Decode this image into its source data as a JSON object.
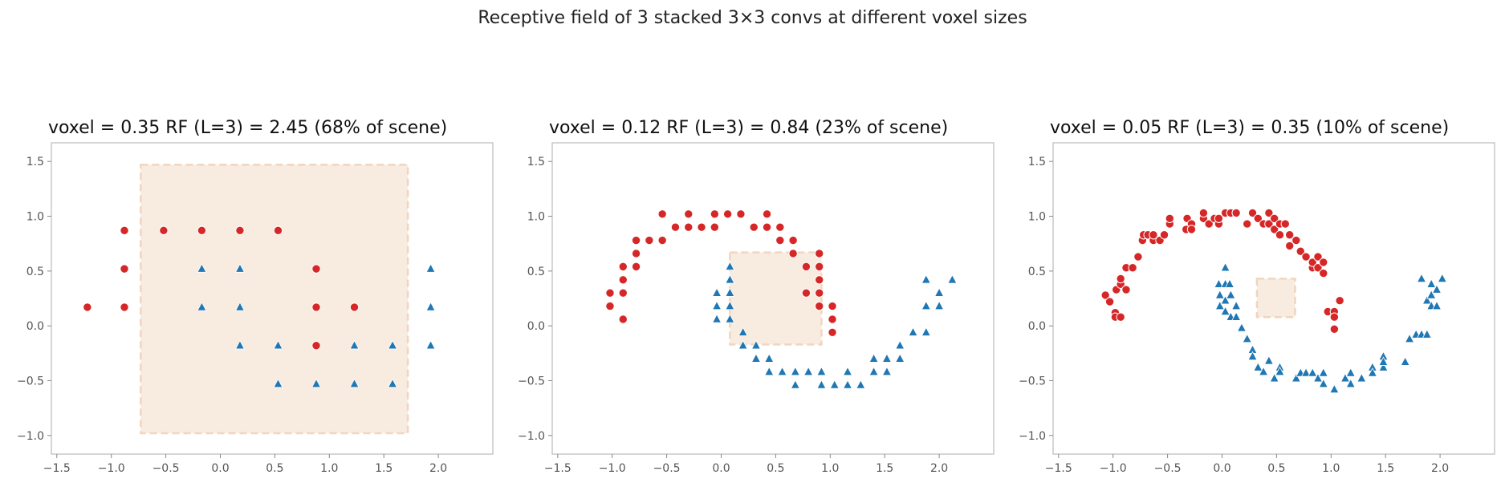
{
  "figure": {
    "suptitle": "Receptive field of 3 stacked 3×3 convs at different voxel sizes"
  },
  "colors": {
    "class_a": "#d62728",
    "class_b": "#1f77b4",
    "rf_fill": "#f8ebe0",
    "rf_edge": "#f1d5bf",
    "frame": "#bbbbbb"
  },
  "chart_data": [
    {
      "type": "scatter",
      "title": "voxel = 0.35    RF (L=3) = 2.45  (68% of scene)",
      "xlim": [
        -1.55,
        2.5
      ],
      "ylim": [
        -1.17,
        1.67
      ],
      "xticks": [
        -1.5,
        -1.0,
        -0.5,
        0.0,
        0.5,
        1.0,
        1.5,
        2.0
      ],
      "yticks": [
        -1.0,
        -0.5,
        0.0,
        0.5,
        1.0,
        1.5
      ],
      "xtick_labels": [
        "−1.5",
        "−1.0",
        "−0.5",
        "0.0",
        "0.5",
        "1.0",
        "1.5",
        "2.0"
      ],
      "ytick_labels": [
        "−1.0",
        "−0.5",
        "0.0",
        "0.5",
        "1.0",
        "1.5"
      ],
      "rf_box": [
        -0.73,
        -0.98,
        1.72,
        1.47
      ],
      "series": [
        {
          "marker": "circle",
          "color": "#d62728",
          "points": [
            [
              -1.22,
              0.17
            ],
            [
              -0.88,
              0.17
            ],
            [
              -0.88,
              0.52
            ],
            [
              -0.88,
              0.87
            ],
            [
              -0.52,
              0.87
            ],
            [
              -0.17,
              0.87
            ],
            [
              0.18,
              0.87
            ],
            [
              0.53,
              0.87
            ],
            [
              0.88,
              0.52
            ],
            [
              0.88,
              0.17
            ],
            [
              0.88,
              -0.18
            ],
            [
              1.23,
              0.17
            ]
          ]
        },
        {
          "marker": "triangle",
          "color": "#1f77b4",
          "points": [
            [
              -0.17,
              0.52
            ],
            [
              -0.17,
              0.17
            ],
            [
              0.18,
              0.52
            ],
            [
              0.18,
              0.17
            ],
            [
              0.18,
              -0.18
            ],
            [
              0.53,
              -0.18
            ],
            [
              0.53,
              -0.53
            ],
            [
              0.88,
              -0.53
            ],
            [
              1.23,
              -0.18
            ],
            [
              1.23,
              -0.53
            ],
            [
              1.58,
              -0.18
            ],
            [
              1.58,
              -0.53
            ],
            [
              1.93,
              0.52
            ],
            [
              1.93,
              0.17
            ],
            [
              1.93,
              -0.18
            ]
          ]
        }
      ]
    },
    {
      "type": "scatter",
      "title": "voxel = 0.12    RF (L=3) = 0.84  (23% of scene)",
      "xlim": [
        -1.55,
        2.5
      ],
      "ylim": [
        -1.17,
        1.67
      ],
      "xticks": [
        -1.5,
        -1.0,
        -0.5,
        0.0,
        0.5,
        1.0,
        1.5,
        2.0
      ],
      "yticks": [
        -1.0,
        -0.5,
        0.0,
        0.5,
        1.0,
        1.5
      ],
      "xtick_labels": [
        "−1.5",
        "−1.0",
        "−0.5",
        "0.0",
        "0.5",
        "1.0",
        "1.5",
        "2.0"
      ],
      "ytick_labels": [
        "−1.0",
        "−0.5",
        "0.0",
        "0.5",
        "1.0",
        "1.5"
      ],
      "rf_box": [
        0.08,
        -0.17,
        0.92,
        0.67
      ],
      "series": [
        {
          "marker": "circle",
          "color": "#d62728",
          "points": [
            [
              -1.02,
              0.3
            ],
            [
              -1.02,
              0.18
            ],
            [
              -0.9,
              0.06
            ],
            [
              -0.9,
              0.3
            ],
            [
              -0.9,
              0.42
            ],
            [
              -0.9,
              0.54
            ],
            [
              -0.78,
              0.54
            ],
            [
              -0.78,
              0.66
            ],
            [
              -0.78,
              0.78
            ],
            [
              -0.66,
              0.78
            ],
            [
              -0.54,
              0.78
            ],
            [
              -0.54,
              1.02
            ],
            [
              -0.42,
              0.9
            ],
            [
              -0.3,
              0.9
            ],
            [
              -0.3,
              1.02
            ],
            [
              -0.18,
              0.9
            ],
            [
              -0.06,
              0.9
            ],
            [
              -0.06,
              1.02
            ],
            [
              0.06,
              1.02
            ],
            [
              0.18,
              1.02
            ],
            [
              0.3,
              0.9
            ],
            [
              0.42,
              0.9
            ],
            [
              0.42,
              1.02
            ],
            [
              0.54,
              0.9
            ],
            [
              0.54,
              0.78
            ],
            [
              0.66,
              0.78
            ],
            [
              0.66,
              0.66
            ],
            [
              0.78,
              0.54
            ],
            [
              0.78,
              0.3
            ],
            [
              0.9,
              0.66
            ],
            [
              0.9,
              0.54
            ],
            [
              0.9,
              0.42
            ],
            [
              0.9,
              0.3
            ],
            [
              0.9,
              0.18
            ],
            [
              1.02,
              0.18
            ],
            [
              1.02,
              0.06
            ],
            [
              1.02,
              -0.06
            ]
          ]
        },
        {
          "marker": "triangle",
          "color": "#1f77b4",
          "points": [
            [
              -0.04,
              0.3
            ],
            [
              -0.04,
              0.18
            ],
            [
              -0.04,
              0.06
            ],
            [
              0.08,
              0.54
            ],
            [
              0.08,
              0.42
            ],
            [
              0.08,
              0.3
            ],
            [
              0.08,
              0.18
            ],
            [
              0.08,
              0.06
            ],
            [
              0.2,
              -0.06
            ],
            [
              0.2,
              -0.18
            ],
            [
              0.32,
              -0.18
            ],
            [
              0.32,
              -0.3
            ],
            [
              0.44,
              -0.3
            ],
            [
              0.44,
              -0.42
            ],
            [
              0.56,
              -0.42
            ],
            [
              0.68,
              -0.42
            ],
            [
              0.68,
              -0.54
            ],
            [
              0.8,
              -0.42
            ],
            [
              0.92,
              -0.42
            ],
            [
              0.92,
              -0.54
            ],
            [
              1.04,
              -0.54
            ],
            [
              1.16,
              -0.54
            ],
            [
              1.16,
              -0.42
            ],
            [
              1.28,
              -0.54
            ],
            [
              1.4,
              -0.3
            ],
            [
              1.4,
              -0.42
            ],
            [
              1.52,
              -0.3
            ],
            [
              1.52,
              -0.42
            ],
            [
              1.64,
              -0.18
            ],
            [
              1.64,
              -0.3
            ],
            [
              1.76,
              -0.06
            ],
            [
              1.88,
              -0.06
            ],
            [
              1.88,
              0.18
            ],
            [
              1.88,
              0.42
            ],
            [
              2.0,
              0.18
            ],
            [
              2.0,
              0.3
            ],
            [
              2.12,
              0.42
            ]
          ]
        }
      ]
    },
    {
      "type": "scatter",
      "title": "voxel = 0.05    RF (L=3) = 0.35  (10% of scene)",
      "xlim": [
        -1.55,
        2.5
      ],
      "ylim": [
        -1.17,
        1.67
      ],
      "xticks": [
        -1.5,
        -1.0,
        -0.5,
        0.0,
        0.5,
        1.0,
        1.5,
        2.0
      ],
      "yticks": [
        -1.0,
        -0.5,
        0.0,
        0.5,
        1.0,
        1.5
      ],
      "xtick_labels": [
        "−1.5",
        "−1.0",
        "−0.5",
        "0.0",
        "0.5",
        "1.0",
        "1.5",
        "2.0"
      ],
      "ytick_labels": [
        "−1.0",
        "−0.5",
        "0.0",
        "0.5",
        "1.0",
        "1.5"
      ],
      "rf_box": [
        0.32,
        0.08,
        0.67,
        0.43
      ],
      "series": [
        {
          "marker": "circle",
          "color": "#d62728",
          "points": [
            [
              -1.07,
              0.28
            ],
            [
              -1.03,
              0.22
            ],
            [
              -0.98,
              0.12
            ],
            [
              -0.98,
              0.08
            ],
            [
              -0.97,
              0.33
            ],
            [
              -0.93,
              0.08
            ],
            [
              -0.93,
              0.38
            ],
            [
              -0.93,
              0.43
            ],
            [
              -0.88,
              0.33
            ],
            [
              -0.88,
              0.53
            ],
            [
              -0.82,
              0.53
            ],
            [
              -0.77,
              0.63
            ],
            [
              -0.73,
              0.78
            ],
            [
              -0.72,
              0.83
            ],
            [
              -0.68,
              0.83
            ],
            [
              -0.63,
              0.78
            ],
            [
              -0.63,
              0.83
            ],
            [
              -0.57,
              0.78
            ],
            [
              -0.53,
              0.83
            ],
            [
              -0.48,
              0.93
            ],
            [
              -0.48,
              0.98
            ],
            [
              -0.33,
              0.88
            ],
            [
              -0.32,
              0.98
            ],
            [
              -0.28,
              0.93
            ],
            [
              -0.28,
              0.88
            ],
            [
              -0.17,
              0.98
            ],
            [
              -0.17,
              1.03
            ],
            [
              -0.12,
              0.93
            ],
            [
              -0.07,
              0.98
            ],
            [
              -0.03,
              0.93
            ],
            [
              -0.03,
              0.98
            ],
            [
              0.03,
              1.03
            ],
            [
              0.08,
              1.03
            ],
            [
              0.13,
              1.03
            ],
            [
              0.23,
              0.93
            ],
            [
              0.28,
              1.03
            ],
            [
              0.33,
              0.98
            ],
            [
              0.38,
              0.93
            ],
            [
              0.43,
              1.03
            ],
            [
              0.43,
              0.93
            ],
            [
              0.48,
              0.98
            ],
            [
              0.48,
              0.88
            ],
            [
              0.53,
              0.93
            ],
            [
              0.53,
              0.83
            ],
            [
              0.58,
              0.93
            ],
            [
              0.62,
              0.83
            ],
            [
              0.62,
              0.73
            ],
            [
              0.68,
              0.78
            ],
            [
              0.72,
              0.68
            ],
            [
              0.77,
              0.63
            ],
            [
              0.83,
              0.53
            ],
            [
              0.83,
              0.58
            ],
            [
              0.88,
              0.63
            ],
            [
              0.88,
              0.53
            ],
            [
              0.93,
              0.58
            ],
            [
              0.93,
              0.48
            ],
            [
              0.97,
              0.13
            ],
            [
              1.03,
              0.13
            ],
            [
              1.03,
              0.08
            ],
            [
              1.03,
              -0.03
            ],
            [
              1.08,
              0.23
            ]
          ]
        },
        {
          "marker": "triangle",
          "color": "#1f77b4",
          "points": [
            [
              -0.03,
              0.38
            ],
            [
              -0.02,
              0.28
            ],
            [
              -0.02,
              0.18
            ],
            [
              0.03,
              0.38
            ],
            [
              0.03,
              0.23
            ],
            [
              0.03,
              0.13
            ],
            [
              0.03,
              0.53
            ],
            [
              0.07,
              0.38
            ],
            [
              0.08,
              0.28
            ],
            [
              0.08,
              0.08
            ],
            [
              0.13,
              0.18
            ],
            [
              0.13,
              0.08
            ],
            [
              0.18,
              -0.02
            ],
            [
              0.23,
              -0.12
            ],
            [
              0.28,
              -0.22
            ],
            [
              0.28,
              -0.28
            ],
            [
              0.33,
              -0.38
            ],
            [
              0.38,
              -0.42
            ],
            [
              0.43,
              -0.32
            ],
            [
              0.48,
              -0.48
            ],
            [
              0.53,
              -0.38
            ],
            [
              0.53,
              -0.42
            ],
            [
              0.68,
              -0.48
            ],
            [
              0.72,
              -0.43
            ],
            [
              0.77,
              -0.43
            ],
            [
              0.83,
              -0.43
            ],
            [
              0.88,
              -0.48
            ],
            [
              0.93,
              -0.53
            ],
            [
              0.93,
              -0.43
            ],
            [
              1.03,
              -0.58
            ],
            [
              1.13,
              -0.48
            ],
            [
              1.18,
              -0.53
            ],
            [
              1.18,
              -0.43
            ],
            [
              1.28,
              -0.48
            ],
            [
              1.38,
              -0.38
            ],
            [
              1.38,
              -0.43
            ],
            [
              1.48,
              -0.28
            ],
            [
              1.48,
              -0.38
            ],
            [
              1.48,
              -0.33
            ],
            [
              1.68,
              -0.33
            ],
            [
              1.72,
              -0.12
            ],
            [
              1.78,
              -0.08
            ],
            [
              1.83,
              -0.08
            ],
            [
              1.88,
              -0.08
            ],
            [
              1.83,
              0.43
            ],
            [
              1.88,
              0.23
            ],
            [
              1.92,
              0.18
            ],
            [
              1.92,
              0.28
            ],
            [
              1.92,
              0.38
            ],
            [
              1.97,
              0.18
            ],
            [
              1.97,
              0.33
            ],
            [
              2.02,
              0.43
            ]
          ]
        }
      ]
    }
  ]
}
